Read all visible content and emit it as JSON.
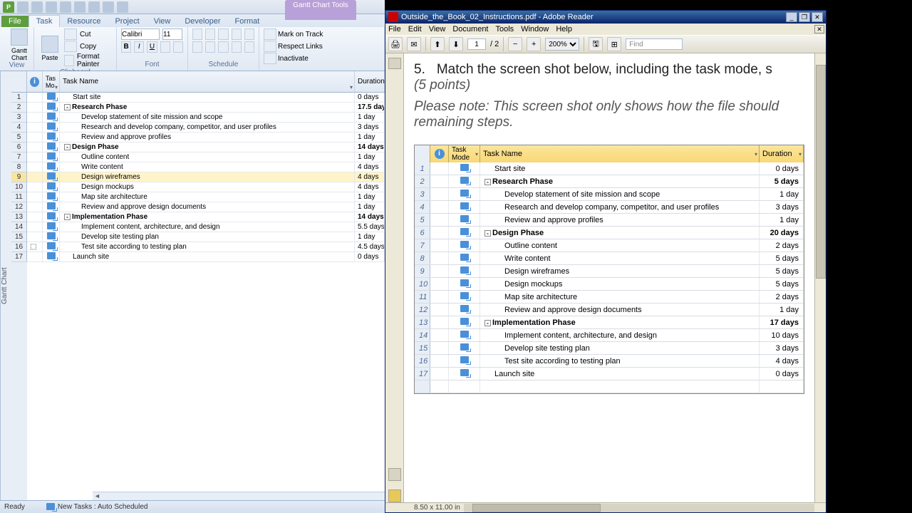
{
  "project": {
    "contextual_tab": "Gantt Chart Tools",
    "tabs": [
      "File",
      "Task",
      "Resource",
      "Project",
      "View",
      "Developer",
      "Format"
    ],
    "active_tab": "Task",
    "ribbon": {
      "view": {
        "label": "View",
        "big": "Gantt\nChart"
      },
      "clipboard": {
        "label": "Clipboard",
        "paste": "Paste",
        "cut": "Cut",
        "copy": "Copy",
        "fmt": "Format Painter"
      },
      "font": {
        "label": "Font",
        "family": "Calibri",
        "size": "11"
      },
      "schedule": {
        "label": "Schedule"
      },
      "tasks": {
        "mark": "Mark on Track",
        "respect": "Respect Links",
        "inact": "Inactivate"
      }
    },
    "columns": {
      "info": "",
      "mode": "Tas\nMo",
      "name": "Task Name",
      "dur": "Duration"
    },
    "selected_row": 9,
    "rows": [
      {
        "n": 1,
        "name": "Start site",
        "dur": "0 days",
        "indent": 1
      },
      {
        "n": 2,
        "name": "Research Phase",
        "dur": "17.5 day",
        "indent": 0,
        "bold": true,
        "toggle": "-"
      },
      {
        "n": 3,
        "name": "Develop statement of site mission and scope",
        "dur": "1 day",
        "indent": 2
      },
      {
        "n": 4,
        "name": "Research and develop company, competitor, and user profiles",
        "dur": "3 days",
        "indent": 2
      },
      {
        "n": 5,
        "name": "Review and approve profiles",
        "dur": "1 day",
        "indent": 2
      },
      {
        "n": 6,
        "name": "Design Phase",
        "dur": "14 days",
        "indent": 0,
        "bold": true,
        "toggle": "-"
      },
      {
        "n": 7,
        "name": "Outline content",
        "dur": "1 day",
        "indent": 2
      },
      {
        "n": 8,
        "name": "Write content",
        "dur": "4 days",
        "indent": 2
      },
      {
        "n": 9,
        "name": "Design wireframes",
        "dur": "4 days",
        "indent": 2
      },
      {
        "n": 10,
        "name": "Design mockups",
        "dur": "4 days",
        "indent": 2
      },
      {
        "n": 11,
        "name": "Map site architecture",
        "dur": "1 day",
        "indent": 2
      },
      {
        "n": 12,
        "name": "Review and approve design documents",
        "dur": "1 day",
        "indent": 2
      },
      {
        "n": 13,
        "name": "Implementation Phase",
        "dur": "14 days",
        "indent": 0,
        "bold": true,
        "toggle": "-"
      },
      {
        "n": 14,
        "name": "Implement content, architecture, and design",
        "dur": "5.5 days",
        "indent": 2
      },
      {
        "n": 15,
        "name": "Develop site testing plan",
        "dur": "1 day",
        "indent": 2
      },
      {
        "n": 16,
        "name": "Test site according to testing plan",
        "dur": "4.5 days",
        "indent": 2,
        "info": true
      },
      {
        "n": 17,
        "name": "Launch site",
        "dur": "0 days",
        "indent": 1
      }
    ],
    "status": {
      "ready": "Ready",
      "newtasks": "New Tasks : Auto Scheduled"
    },
    "side_label": "Gantt Chart"
  },
  "reader": {
    "title": "Outside_the_Book_02_Instructions.pdf - Adobe Reader",
    "menu": [
      "File",
      "Edit",
      "View",
      "Document",
      "Tools",
      "Window",
      "Help"
    ],
    "toolbar": {
      "page": "1",
      "pages": "/ 2",
      "zoom": "200%",
      "find": "Find"
    },
    "body": {
      "step": "5.",
      "line1": "Match the screen shot below, including the task mode, s",
      "line1b": "(5 points)",
      "line2": "Please note: This screen shot only shows how the file should",
      "line2b": "remaining steps."
    },
    "embed": {
      "columns": {
        "mode": "Task\nMode",
        "name": "Task Name",
        "dur": "Duration"
      },
      "rows": [
        {
          "n": 1,
          "name": "Start site",
          "dur": "0 days",
          "indent": 1
        },
        {
          "n": 2,
          "name": "Research Phase",
          "dur": "5 days",
          "indent": 0,
          "bold": true,
          "toggle": "-"
        },
        {
          "n": 3,
          "name": "Develop statement of site mission and scope",
          "dur": "1 day",
          "indent": 2
        },
        {
          "n": 4,
          "name": "Research and develop company, competitor, and user profiles",
          "dur": "3 days",
          "indent": 2
        },
        {
          "n": 5,
          "name": "Review and approve profiles",
          "dur": "1 day",
          "indent": 2
        },
        {
          "n": 6,
          "name": "Design Phase",
          "dur": "20 days",
          "indent": 0,
          "bold": true,
          "toggle": "-"
        },
        {
          "n": 7,
          "name": "Outline content",
          "dur": "2 days",
          "indent": 2
        },
        {
          "n": 8,
          "name": "Write content",
          "dur": "5 days",
          "indent": 2
        },
        {
          "n": 9,
          "name": "Design wireframes",
          "dur": "5 days",
          "indent": 2
        },
        {
          "n": 10,
          "name": "Design mockups",
          "dur": "5 days",
          "indent": 2
        },
        {
          "n": 11,
          "name": "Map site architecture",
          "dur": "2 days",
          "indent": 2
        },
        {
          "n": 12,
          "name": "Review and approve design documents",
          "dur": "1 day",
          "indent": 2
        },
        {
          "n": 13,
          "name": "Implementation Phase",
          "dur": "17 days",
          "indent": 0,
          "bold": true,
          "toggle": "-"
        },
        {
          "n": 14,
          "name": "Implement content, architecture, and design",
          "dur": "10 days",
          "indent": 2
        },
        {
          "n": 15,
          "name": "Develop site testing plan",
          "dur": "3 days",
          "indent": 2
        },
        {
          "n": 16,
          "name": "Test site according to testing plan",
          "dur": "4 days",
          "indent": 2
        },
        {
          "n": 17,
          "name": "Launch site",
          "dur": "0 days",
          "indent": 1
        }
      ]
    },
    "status": {
      "pagesize": "8.50 x 11.00 in"
    }
  }
}
